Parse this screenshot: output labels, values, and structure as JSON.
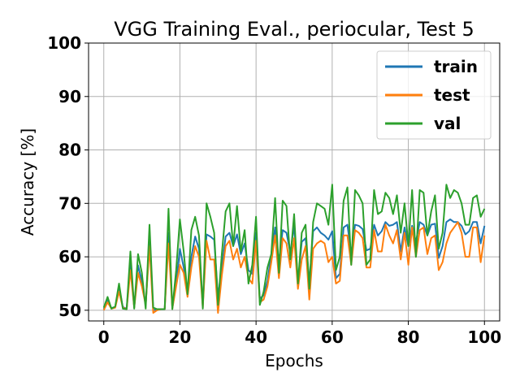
{
  "chart_data": {
    "type": "line",
    "title": "VGG Training Eval., periocular, Test 5",
    "xlabel": "Epochs",
    "ylabel": "Accuracy [%]",
    "xlim": [
      -4,
      104
    ],
    "ylim": [
      48,
      100
    ],
    "xticks": [
      0,
      20,
      40,
      60,
      80,
      100
    ],
    "yticks": [
      50,
      60,
      70,
      80,
      90,
      100
    ],
    "grid": true,
    "legend_position": "top-right",
    "x": [
      0,
      1,
      2,
      3,
      4,
      5,
      6,
      7,
      8,
      9,
      10,
      11,
      12,
      13,
      14,
      15,
      16,
      17,
      18,
      19,
      20,
      21,
      22,
      23,
      24,
      25,
      26,
      27,
      28,
      29,
      30,
      31,
      32,
      33,
      34,
      35,
      36,
      37,
      38,
      39,
      40,
      41,
      42,
      43,
      44,
      45,
      46,
      47,
      48,
      49,
      50,
      51,
      52,
      53,
      54,
      55,
      56,
      57,
      58,
      59,
      60,
      61,
      62,
      63,
      64,
      65,
      66,
      67,
      68,
      69,
      70,
      71,
      72,
      73,
      74,
      75,
      76,
      77,
      78,
      79,
      80,
      81,
      82,
      83,
      84,
      85,
      86,
      87,
      88,
      89,
      90,
      91,
      92,
      93,
      94,
      95,
      96,
      97,
      98,
      99,
      100
    ],
    "series": [
      {
        "name": "train",
        "color": "#1f77b4",
        "values": [
          50.2,
          51.8,
          50.4,
          50.6,
          54.2,
          50.6,
          50.3,
          58.7,
          50.6,
          58.4,
          55.4,
          51.0,
          63.0,
          50.0,
          50.2,
          50.2,
          50.2,
          64.5,
          50.4,
          55.0,
          61.5,
          58.0,
          53.5,
          60.0,
          63.8,
          61.5,
          51.0,
          64.2,
          63.8,
          63.2,
          52.5,
          58.0,
          63.8,
          64.5,
          62.0,
          64.2,
          60.5,
          62.5,
          57.5,
          56.8,
          64.5,
          52.2,
          52.8,
          55.5,
          60.5,
          65.5,
          59.0,
          65.0,
          64.5,
          60.8,
          65.8,
          55.2,
          62.8,
          63.5,
          55.2,
          64.8,
          65.5,
          64.5,
          64.0,
          63.2,
          64.8,
          56.0,
          56.8,
          65.5,
          66.0,
          60.5,
          66.0,
          65.8,
          65.2,
          61.2,
          61.5,
          66.0,
          64.0,
          64.8,
          66.5,
          65.8,
          66.0,
          66.5,
          61.0,
          65.5,
          62.0,
          65.8,
          62.8,
          66.5,
          66.0,
          64.0,
          66.0,
          66.2,
          59.8,
          62.0,
          66.5,
          67.0,
          66.5,
          66.5,
          65.8,
          64.2,
          64.8,
          66.5,
          66.5,
          62.5,
          65.8
        ]
      },
      {
        "name": "test",
        "color": "#ff7f0e",
        "values": [
          50.0,
          51.5,
          50.3,
          50.5,
          53.5,
          50.5,
          50.2,
          57.5,
          50.5,
          57.0,
          54.5,
          51.0,
          62.0,
          49.5,
          50.0,
          50.2,
          50.2,
          62.5,
          50.3,
          54.5,
          58.5,
          57.0,
          52.5,
          58.0,
          62.0,
          60.0,
          50.5,
          63.0,
          59.5,
          59.5,
          49.5,
          56.5,
          62.0,
          63.0,
          59.5,
          61.5,
          58.0,
          60.0,
          56.0,
          55.0,
          63.0,
          51.5,
          52.0,
          54.5,
          59.0,
          64.0,
          56.0,
          63.5,
          62.5,
          58.0,
          63.5,
          54.0,
          59.5,
          62.0,
          52.0,
          61.5,
          62.5,
          63.0,
          62.5,
          59.0,
          60.0,
          55.0,
          55.5,
          64.0,
          64.0,
          58.5,
          65.0,
          64.5,
          63.5,
          58.0,
          58.0,
          65.0,
          61.0,
          61.0,
          66.0,
          64.0,
          62.5,
          65.0,
          59.5,
          64.5,
          58.5,
          65.5,
          60.0,
          65.0,
          65.5,
          60.5,
          63.5,
          64.0,
          57.5,
          59.0,
          62.5,
          64.5,
          65.5,
          66.5,
          64.5,
          60.0,
          60.0,
          65.5,
          65.5,
          59.0,
          64.0
        ]
      },
      {
        "name": "val",
        "color": "#2ca02c",
        "values": [
          50.5,
          52.5,
          50.3,
          50.7,
          55.0,
          50.3,
          50.2,
          61.0,
          50.3,
          60.5,
          57.0,
          50.3,
          66.0,
          50.5,
          50.2,
          50.2,
          50.2,
          69.0,
          50.2,
          57.5,
          67.0,
          61.0,
          53.0,
          65.0,
          67.5,
          64.0,
          50.3,
          70.0,
          67.5,
          64.5,
          51.0,
          60.5,
          68.5,
          70.0,
          62.0,
          69.5,
          61.0,
          65.0,
          55.0,
          58.5,
          67.5,
          51.0,
          53.5,
          58.0,
          60.5,
          71.0,
          57.0,
          70.5,
          69.5,
          59.5,
          68.0,
          55.0,
          64.5,
          66.0,
          54.0,
          66.5,
          70.0,
          69.5,
          69.0,
          66.0,
          73.5,
          57.5,
          60.0,
          70.5,
          73.0,
          58.5,
          72.5,
          71.5,
          70.0,
          58.5,
          59.5,
          72.5,
          68.0,
          68.5,
          72.0,
          71.0,
          68.0,
          71.5,
          64.5,
          70.0,
          62.0,
          72.5,
          60.0,
          72.5,
          72.0,
          64.0,
          68.5,
          71.5,
          61.5,
          64.5,
          73.5,
          71.0,
          72.5,
          72.0,
          70.0,
          66.0,
          66.0,
          71.0,
          71.5,
          67.5,
          69.0
        ]
      }
    ]
  }
}
